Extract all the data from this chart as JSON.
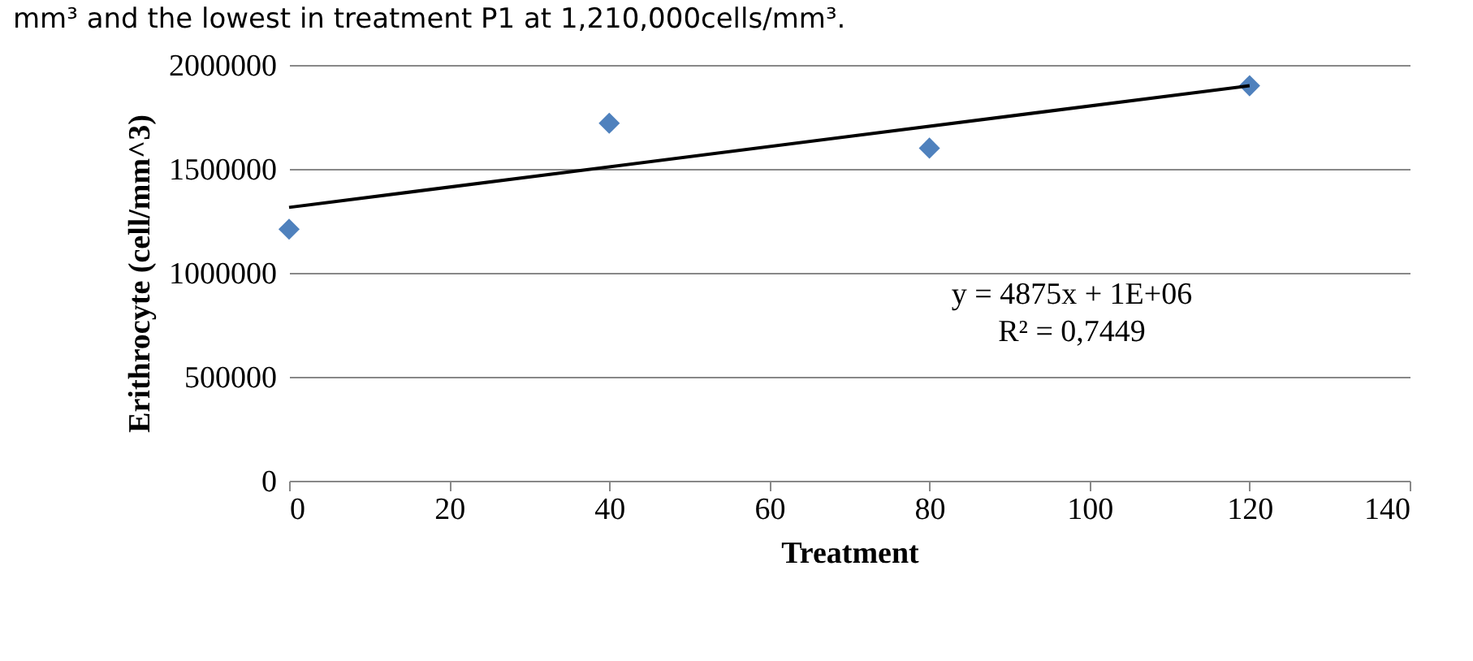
{
  "chart_data": {
    "type": "scatter",
    "xlabel": "Treatment",
    "ylabel": "Erithrocyte (cell/mm^3)",
    "series": [
      {
        "color": "#4f81bd",
        "marker": "diamond",
        "x": [
          0,
          40,
          80,
          120
        ],
        "values": [
          1210000,
          1720000,
          1600000,
          1900000
        ]
      },
      {
        "type": "line",
        "color": "#000000",
        "x": [
          0,
          120
        ],
        "values": [
          1315000,
          1900000
        ],
        "line_style": "solid"
      }
    ],
    "xlim": [
      0,
      140
    ],
    "xticks": [
      0,
      20,
      40,
      60,
      80,
      100,
      120,
      140
    ],
    "ylim": [
      0,
      2000000
    ],
    "yticks": [
      0,
      500000,
      1000000,
      1500000,
      2000000
    ],
    "grid": "y",
    "annotations": [
      "mm³ and the lowest in treatment P1 at 1,210,000cells/mm³.",
      "y = 4875x + 1E+06",
      "R² = 0,7449"
    ]
  }
}
